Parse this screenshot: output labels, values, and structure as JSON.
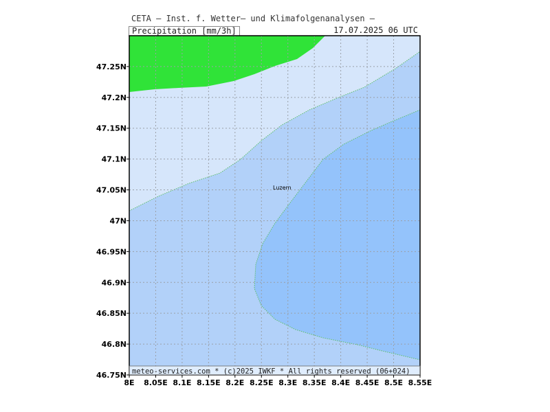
{
  "header": {
    "title": "CETA — Inst. f. Wetter— und Klimafolgenanalysen —",
    "variable": "Precipitation_[mm/3h]",
    "valid_time": "17.07.2025 06 UTC"
  },
  "map": {
    "lon_range": [
      8.0,
      8.55
    ],
    "lat_range": [
      46.75,
      47.3
    ],
    "x_ticks": [
      "8E",
      "8.05E",
      "8.1E",
      "8.15E",
      "8.2E",
      "8.25E",
      "8.3E",
      "8.35E",
      "8.4E",
      "8.45E",
      "8.5E",
      "8.55E"
    ],
    "y_ticks": [
      "46.75N",
      "46.8N",
      "46.85N",
      "46.9N",
      "46.95N",
      "47N",
      "47.05N",
      "47.1N",
      "47.15N",
      "47.2N",
      "47.25N"
    ],
    "colors": {
      "band_lightest": "#d6e6fb",
      "band_light": "#b2d1f9",
      "band_medium": "#94c3fb",
      "green": "#30e338",
      "contour": "#5fbf6a",
      "grid": "#9aa0a8"
    },
    "city": {
      "name": "Luzern"
    },
    "footer": "meteo-services.com * (c)2025 IWKF * All rights reserved (06+024)"
  }
}
